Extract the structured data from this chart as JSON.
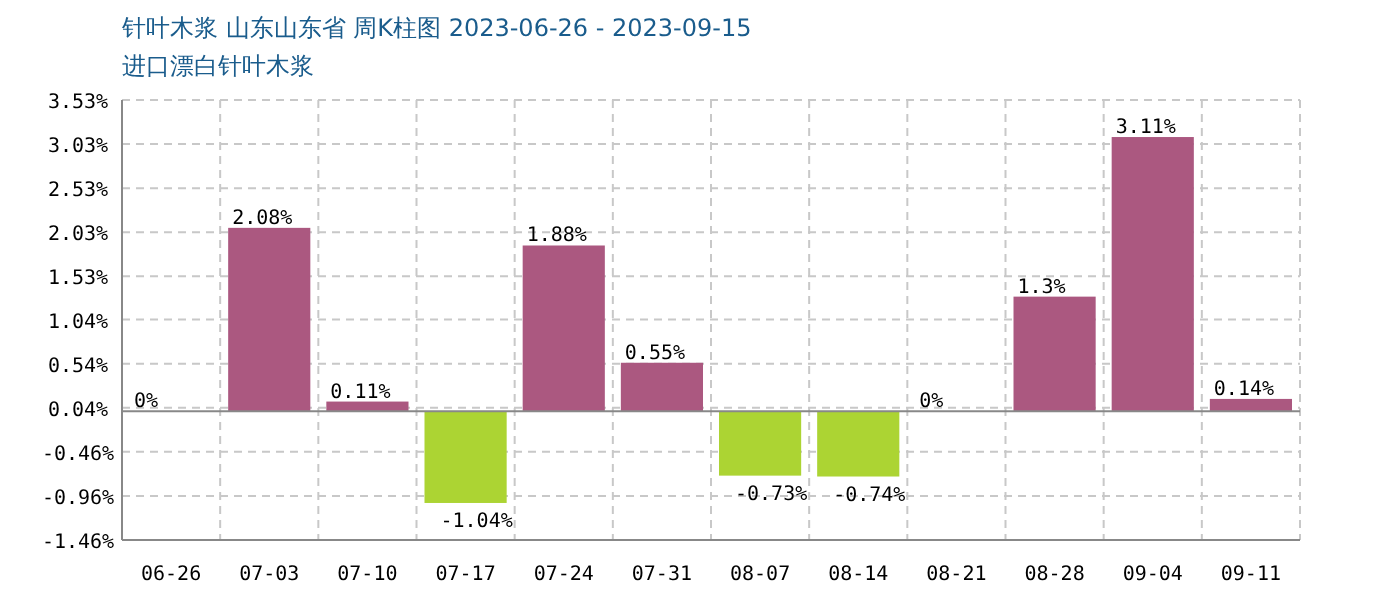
{
  "chart_data": {
    "type": "bar",
    "title": "针叶木浆 山东山东省 周K柱图 2023-06-26 - 2023-09-15",
    "subtitle": "进口漂白针叶木浆",
    "categories": [
      "06-26",
      "07-03",
      "07-10",
      "07-17",
      "07-24",
      "07-31",
      "08-07",
      "08-14",
      "08-21",
      "08-28",
      "09-04",
      "09-11"
    ],
    "values": [
      0,
      2.08,
      0.11,
      -1.04,
      1.88,
      0.55,
      -0.73,
      -0.74,
      0,
      1.3,
      3.11,
      0.14
    ],
    "value_labels": [
      "0%",
      "2.08%",
      "0.11%",
      "-1.04%",
      "1.88%",
      "0.55%",
      "-0.73%",
      "-0.74%",
      "0%",
      "1.3%",
      "3.11%",
      "0.14%"
    ],
    "colors": [
      "#ab5880",
      "#ab5880",
      "#ab5880",
      "#acd433",
      "#ab5880",
      "#ab5880",
      "#acd433",
      "#acd433",
      "#ab5880",
      "#ab5880",
      "#ab5880",
      "#ab5880"
    ],
    "ylim": [
      -1.46,
      3.53
    ],
    "yticks": [
      {
        "value": -1.46,
        "label": "-1.46%"
      },
      {
        "value": -0.96,
        "label": "-0.96%"
      },
      {
        "value": -0.46,
        "label": "-0.46%"
      },
      {
        "value": 0.04,
        "label": "0.04%"
      },
      {
        "value": 0.54,
        "label": "0.54%"
      },
      {
        "value": 1.04,
        "label": "1.04%"
      },
      {
        "value": 1.53,
        "label": "1.53%"
      },
      {
        "value": 2.03,
        "label": "2.03%"
      },
      {
        "value": 2.53,
        "label": "2.53%"
      },
      {
        "value": 3.03,
        "label": "3.03%"
      },
      {
        "value": 3.53,
        "label": "3.53%"
      }
    ],
    "grid": true
  }
}
